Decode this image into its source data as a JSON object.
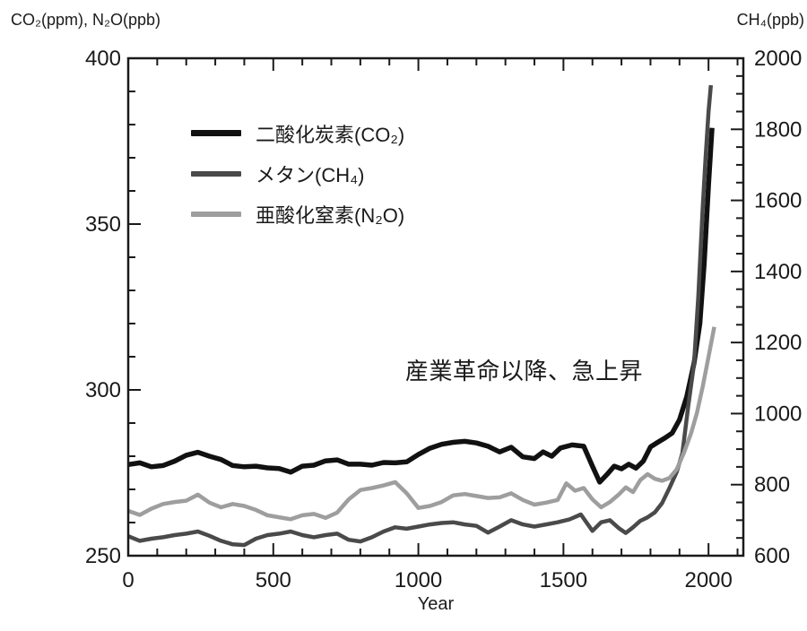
{
  "titles": {
    "left": "CO₂(ppm), N₂O(ppb)",
    "right": "CH₄(ppb)"
  },
  "chart_data": {
    "type": "line",
    "title": "",
    "xlabel": "Year",
    "annotation": "産業革命以降、急上昇",
    "xlim": [
      0,
      2120
    ],
    "x_ticks_major": [
      0,
      500,
      1000,
      1500,
      2000
    ],
    "x_minor_step": 100,
    "left_axis": {
      "title": "CO₂(ppm), N₂O(ppb)",
      "range": [
        250,
        400
      ],
      "ticks_major": [
        250,
        300,
        350,
        400
      ],
      "minor_step": 10
    },
    "right_axis": {
      "title": "CH₄(ppb)",
      "range": [
        600,
        2000
      ],
      "ticks_major": [
        600,
        800,
        1000,
        1200,
        1400,
        1600,
        1800,
        2000
      ],
      "minor_step": 50
    },
    "legend_position": "top-left-inside",
    "grid": false,
    "series": [
      {
        "name": "二酸化炭素(CO₂)",
        "unit": "ppm",
        "axis": "left",
        "color": "#111111",
        "width": 5.5,
        "points": [
          [
            0,
            277.5
          ],
          [
            40,
            278
          ],
          [
            80,
            276.8
          ],
          [
            120,
            277.2
          ],
          [
            160,
            278.5
          ],
          [
            200,
            280.3
          ],
          [
            240,
            281.2
          ],
          [
            280,
            280
          ],
          [
            320,
            279
          ],
          [
            360,
            277.2
          ],
          [
            400,
            276.8
          ],
          [
            440,
            277
          ],
          [
            480,
            276.5
          ],
          [
            520,
            276.3
          ],
          [
            560,
            275.2
          ],
          [
            600,
            277
          ],
          [
            640,
            277.3
          ],
          [
            680,
            278.6
          ],
          [
            720,
            278.9
          ],
          [
            760,
            277.6
          ],
          [
            800,
            277.6
          ],
          [
            840,
            277.3
          ],
          [
            880,
            278.1
          ],
          [
            920,
            278
          ],
          [
            960,
            278.3
          ],
          [
            1000,
            280.5
          ],
          [
            1040,
            282.4
          ],
          [
            1080,
            283.6
          ],
          [
            1120,
            284.2
          ],
          [
            1160,
            284.5
          ],
          [
            1200,
            284
          ],
          [
            1240,
            283
          ],
          [
            1280,
            281.3
          ],
          [
            1320,
            282.7
          ],
          [
            1360,
            279.8
          ],
          [
            1400,
            279.3
          ],
          [
            1430,
            281.3
          ],
          [
            1460,
            280
          ],
          [
            1490,
            282.5
          ],
          [
            1530,
            283.4
          ],
          [
            1570,
            283
          ],
          [
            1600,
            277
          ],
          [
            1625,
            272.2
          ],
          [
            1650,
            274.5
          ],
          [
            1675,
            277
          ],
          [
            1700,
            276.2
          ],
          [
            1725,
            277.6
          ],
          [
            1750,
            276.4
          ],
          [
            1775,
            278.5
          ],
          [
            1800,
            282.8
          ],
          [
            1825,
            284.2
          ],
          [
            1850,
            285.5
          ],
          [
            1875,
            287
          ],
          [
            1900,
            291
          ],
          [
            1925,
            298
          ],
          [
            1950,
            308
          ],
          [
            1970,
            320
          ],
          [
            1985,
            338
          ],
          [
            2000,
            362
          ],
          [
            2012,
            379
          ]
        ]
      },
      {
        "name": "メタン(CH₄)",
        "unit": "ppb",
        "axis": "right",
        "color": "#4a4a4a",
        "width": 4.5,
        "points": [
          [
            0,
            655
          ],
          [
            40,
            642
          ],
          [
            80,
            648
          ],
          [
            120,
            652
          ],
          [
            160,
            658
          ],
          [
            200,
            662
          ],
          [
            240,
            668
          ],
          [
            280,
            656
          ],
          [
            320,
            642
          ],
          [
            360,
            632
          ],
          [
            400,
            630
          ],
          [
            440,
            648
          ],
          [
            480,
            658
          ],
          [
            520,
            662
          ],
          [
            560,
            668
          ],
          [
            600,
            658
          ],
          [
            640,
            652
          ],
          [
            680,
            658
          ],
          [
            720,
            662
          ],
          [
            760,
            645
          ],
          [
            800,
            640
          ],
          [
            840,
            652
          ],
          [
            880,
            668
          ],
          [
            920,
            680
          ],
          [
            960,
            676
          ],
          [
            1000,
            682
          ],
          [
            1040,
            688
          ],
          [
            1080,
            692
          ],
          [
            1120,
            694
          ],
          [
            1160,
            688
          ],
          [
            1200,
            684
          ],
          [
            1240,
            665
          ],
          [
            1280,
            682
          ],
          [
            1320,
            700
          ],
          [
            1360,
            688
          ],
          [
            1400,
            682
          ],
          [
            1440,
            688
          ],
          [
            1480,
            694
          ],
          [
            1520,
            702
          ],
          [
            1560,
            716
          ],
          [
            1600,
            670
          ],
          [
            1630,
            694
          ],
          [
            1660,
            700
          ],
          [
            1690,
            678
          ],
          [
            1715,
            664
          ],
          [
            1740,
            680
          ],
          [
            1765,
            698
          ],
          [
            1790,
            708
          ],
          [
            1815,
            722
          ],
          [
            1840,
            748
          ],
          [
            1865,
            790
          ],
          [
            1890,
            835
          ],
          [
            1910,
            888
          ],
          [
            1930,
            1020
          ],
          [
            1950,
            1140
          ],
          [
            1965,
            1330
          ],
          [
            1980,
            1580
          ],
          [
            1990,
            1720
          ],
          [
            2000,
            1850
          ],
          [
            2008,
            1924
          ]
        ]
      },
      {
        "name": "亜酸化窒素(N₂O)",
        "unit": "ppb",
        "axis": "left",
        "color": "#9e9e9e",
        "width": 4.5,
        "points": [
          [
            0,
            263.5
          ],
          [
            40,
            262.3
          ],
          [
            80,
            264.2
          ],
          [
            120,
            265.6
          ],
          [
            160,
            266.2
          ],
          [
            200,
            266.6
          ],
          [
            240,
            268.4
          ],
          [
            280,
            266
          ],
          [
            320,
            264.6
          ],
          [
            360,
            265.6
          ],
          [
            400,
            265
          ],
          [
            440,
            263.8
          ],
          [
            480,
            262.2
          ],
          [
            520,
            261.6
          ],
          [
            560,
            261
          ],
          [
            600,
            262.2
          ],
          [
            640,
            262.6
          ],
          [
            680,
            261.4
          ],
          [
            720,
            263
          ],
          [
            760,
            267
          ],
          [
            800,
            269.8
          ],
          [
            840,
            270.4
          ],
          [
            880,
            271.2
          ],
          [
            920,
            272.2
          ],
          [
            960,
            268.8
          ],
          [
            1000,
            264.4
          ],
          [
            1040,
            265
          ],
          [
            1080,
            266.2
          ],
          [
            1120,
            268.2
          ],
          [
            1160,
            268.6
          ],
          [
            1200,
            268
          ],
          [
            1240,
            267.4
          ],
          [
            1280,
            267.6
          ],
          [
            1320,
            268.8
          ],
          [
            1360,
            266.8
          ],
          [
            1400,
            265.4
          ],
          [
            1440,
            266
          ],
          [
            1480,
            266.8
          ],
          [
            1510,
            271.8
          ],
          [
            1540,
            269.6
          ],
          [
            1570,
            270.4
          ],
          [
            1600,
            267
          ],
          [
            1630,
            264.6
          ],
          [
            1660,
            266.2
          ],
          [
            1690,
            268.4
          ],
          [
            1715,
            270.6
          ],
          [
            1740,
            269.2
          ],
          [
            1765,
            272.8
          ],
          [
            1790,
            274.6
          ],
          [
            1815,
            273.2
          ],
          [
            1840,
            272.6
          ],
          [
            1865,
            273.4
          ],
          [
            1890,
            276
          ],
          [
            1915,
            281
          ],
          [
            1940,
            287
          ],
          [
            1960,
            293
          ],
          [
            1980,
            301
          ],
          [
            2000,
            310
          ],
          [
            2020,
            319
          ]
        ]
      }
    ]
  }
}
